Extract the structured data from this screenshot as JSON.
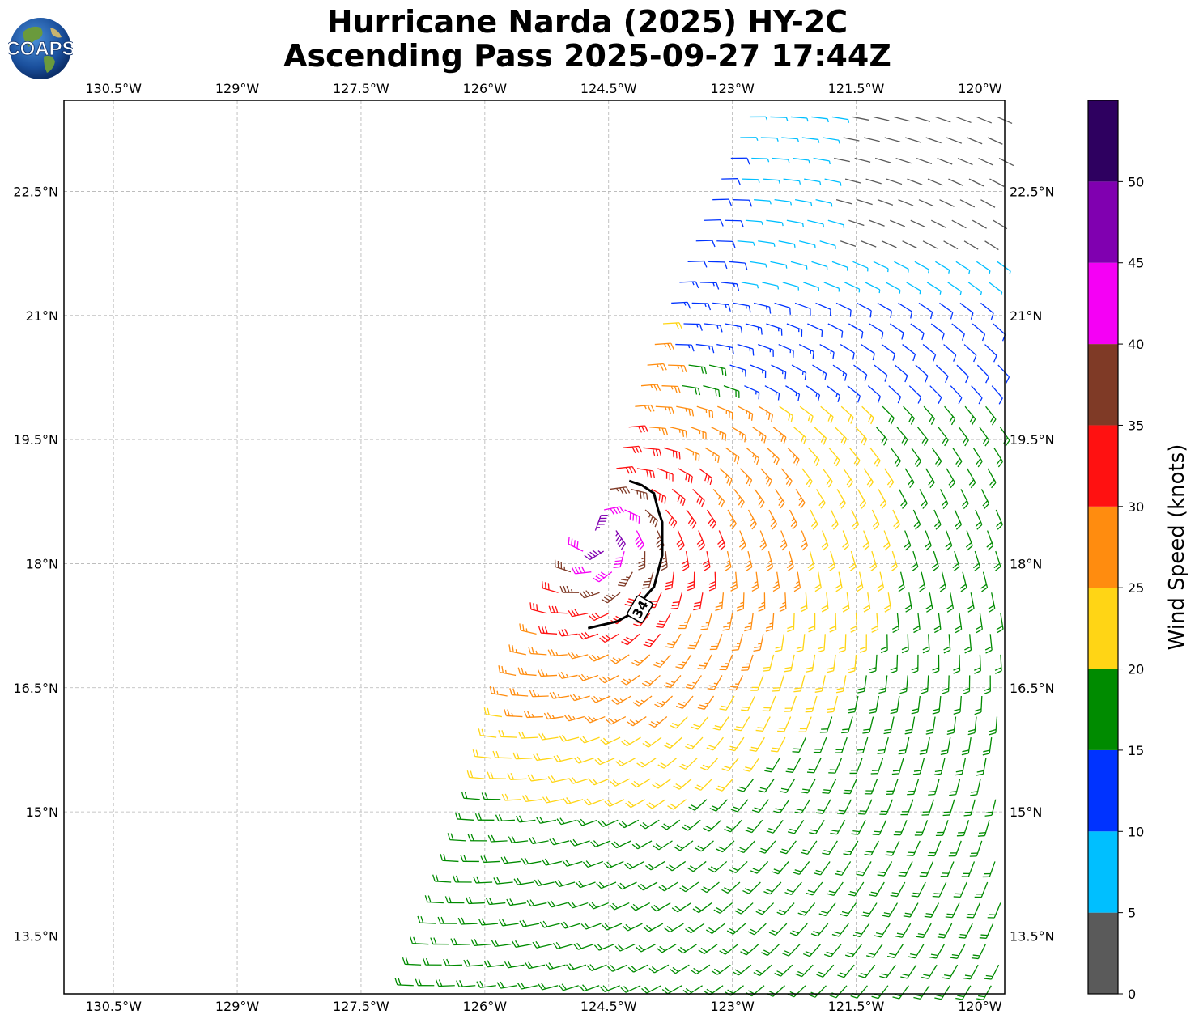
{
  "title": {
    "line1": "Hurricane Narda (2025) HY-2C",
    "line2": "Ascending Pass 2025-09-27 17:44Z"
  },
  "logo": {
    "text": "COAPS",
    "icon": "coaps-globe-logo"
  },
  "map": {
    "lon_range": [
      -131.1,
      -119.7
    ],
    "lat_range": [
      12.8,
      23.6
    ],
    "gridlines": true,
    "lon_ticks": [
      -130.5,
      -129,
      -127.5,
      -126,
      -124.5,
      -123,
      -121.5,
      -120
    ],
    "lon_tick_labels": [
      "130.5°W",
      "129°W",
      "127.5°W",
      "126°W",
      "124.5°W",
      "123°W",
      "121.5°W",
      "120°W"
    ],
    "lat_ticks": [
      13.5,
      15,
      16.5,
      18,
      19.5,
      21,
      22.5
    ],
    "lat_tick_labels": [
      "13.5°N",
      "15°N",
      "16.5°N",
      "18°N",
      "19.5°N",
      "21°N",
      "22.5°N"
    ],
    "storm_center": {
      "lon": -124.6,
      "lat": 18.35
    },
    "contour_34kt": {
      "label": "34",
      "lon": [
        -124.75,
        -124.4,
        -124.25,
        -124.1,
        -123.95,
        -123.85,
        -123.85,
        -123.9,
        -123.95,
        -124.1,
        -124.25
      ],
      "lat": [
        17.22,
        17.3,
        17.38,
        17.55,
        17.72,
        18.1,
        18.5,
        18.65,
        18.85,
        18.95,
        19.0
      ]
    }
  },
  "colorbar": {
    "label": "Wind Speed (knots)",
    "tick_labels": [
      "0",
      "5",
      "10",
      "15",
      "20",
      "25",
      "30",
      "35",
      "40",
      "45",
      "50"
    ],
    "bins": [
      {
        "min": 0,
        "max": 5,
        "color": "#5a5a5a"
      },
      {
        "min": 5,
        "max": 10,
        "color": "#00bfff"
      },
      {
        "min": 10,
        "max": 15,
        "color": "#0033ff"
      },
      {
        "min": 15,
        "max": 20,
        "color": "#008b00"
      },
      {
        "min": 20,
        "max": 25,
        "color": "#ffd515"
      },
      {
        "min": 25,
        "max": 30,
        "color": "#ff8c0f"
      },
      {
        "min": 30,
        "max": 35,
        "color": "#ff1111"
      },
      {
        "min": 35,
        "max": 40,
        "color": "#7f3a26"
      },
      {
        "min": 40,
        "max": 45,
        "color": "#f500f5"
      },
      {
        "min": 45,
        "max": 50,
        "color": "#8000b0"
      },
      {
        "min": 50,
        "max": 55,
        "color": "#2e0060"
      }
    ]
  },
  "barb_colors": {
    "0": "#5a5a5a",
    "5": "#00bfff",
    "10": "#0033ff",
    "15": "#008b00",
    "20": "#ffd515",
    "25": "#ff8c0f",
    "30": "#ff1111",
    "35": "#7f3a26",
    "40": "#f500f5",
    "45": "#8000b0"
  }
}
